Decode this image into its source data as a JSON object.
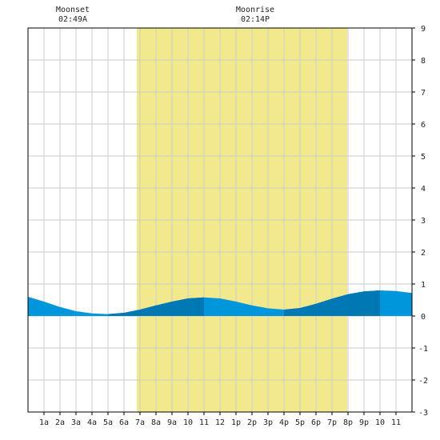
{
  "chart_data": {
    "type": "area",
    "title": "",
    "xlabel": "",
    "ylabel": "",
    "x_tick_labels": [
      "1a",
      "2a",
      "3a",
      "4a",
      "5a",
      "6a",
      "7a",
      "8a",
      "9a",
      "10",
      "11",
      "12",
      "1p",
      "2p",
      "3p",
      "4p",
      "5p",
      "6p",
      "7p",
      "8p",
      "9p",
      "10",
      "11"
    ],
    "x_range_hours": [
      0,
      24
    ],
    "ylim": [
      -3,
      9
    ],
    "y_ticks": [
      -3,
      -2,
      -1,
      0,
      1,
      2,
      3,
      4,
      5,
      6,
      7,
      8,
      9
    ],
    "grid": true,
    "daylight_hours": [
      6.8,
      19.95
    ],
    "moon_events": [
      {
        "label": "Moonset",
        "time": "02:49A",
        "hour": 2.8
      },
      {
        "label": "Moonrise",
        "time": "02:14P",
        "hour": 14.2
      }
    ],
    "series": [
      {
        "x_hours": [
          0,
          1,
          2,
          3,
          4,
          5,
          6,
          7,
          8,
          9,
          10,
          11,
          12,
          13,
          14,
          15,
          16,
          17,
          18,
          19,
          20,
          21,
          22,
          23,
          24
        ],
        "values": [
          0.6,
          0.45,
          0.28,
          0.15,
          0.08,
          0.06,
          0.1,
          0.2,
          0.33,
          0.45,
          0.55,
          0.58,
          0.55,
          0.45,
          0.33,
          0.24,
          0.2,
          0.25,
          0.38,
          0.54,
          0.68,
          0.77,
          0.8,
          0.78,
          0.72
        ]
      }
    ],
    "colors": {
      "daylight": "#f2e98c",
      "tide_light": "#0096dc",
      "tide_dark": "#0078b4",
      "grid": "#cccccc",
      "axis": "#000000"
    }
  }
}
